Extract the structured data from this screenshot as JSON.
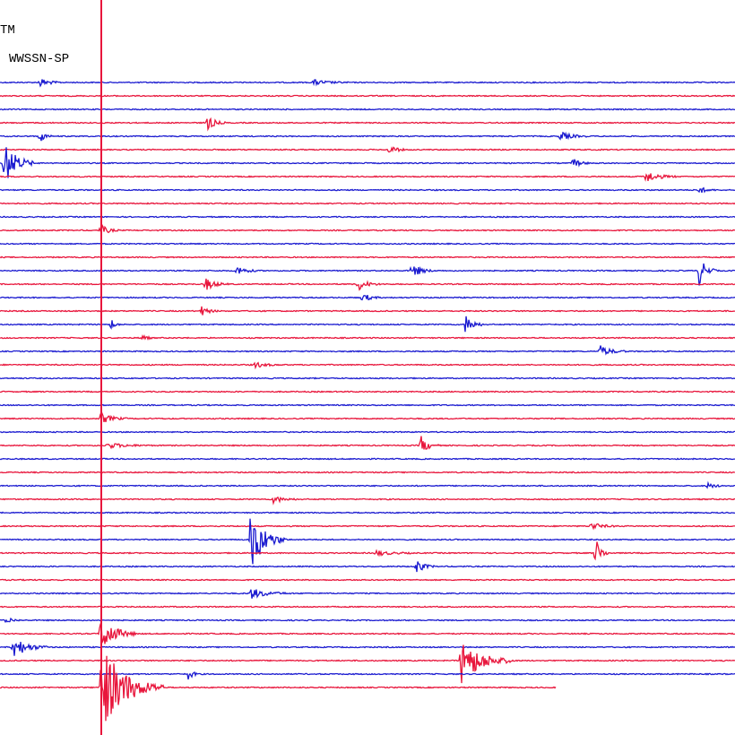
{
  "header": {
    "station": "TM",
    "instrument": "WWSSN-SP"
  }
}
